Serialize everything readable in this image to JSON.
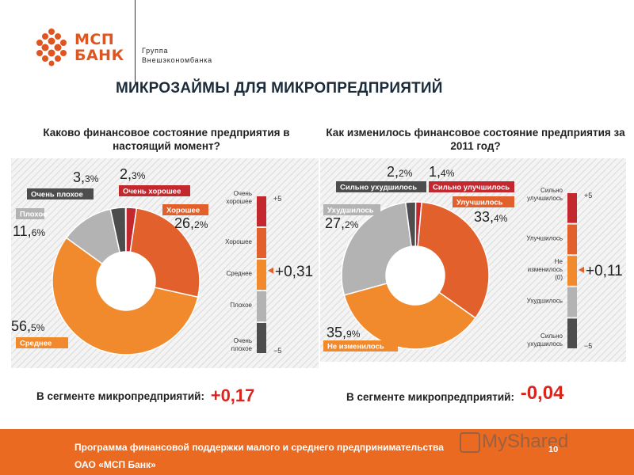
{
  "brand": {
    "logo_line1": "МСП",
    "logo_line2": "БАНК",
    "group_line1": "Группа",
    "group_line2": "Внешэкономбанка"
  },
  "title": "МИКРОЗАЙМЫ ДЛЯ МИКРОПРЕДПРИЯТИЙ",
  "footer": {
    "line1": "Программа финансовой поддержки малого и среднего предпринимательства",
    "line2": "ОАО «МСП Банк»",
    "page_number": "10",
    "watermark": "MyShared"
  },
  "chart_data": [
    {
      "type": "pie",
      "title": "Каково финансовое состояние предприятия в настоящий момент?",
      "slices": [
        {
          "label": "Очень хорошее",
          "value_int": "2,",
          "value_dec": "3%",
          "value": 2.3,
          "color": "#c2282e"
        },
        {
          "label": "Хорошее",
          "value_int": "26,",
          "value_dec": "2%",
          "value": 26.2,
          "color": "#e2602b"
        },
        {
          "label": "Среднее",
          "value_int": "56,",
          "value_dec": "5%",
          "value": 56.5,
          "color": "#f08a2c"
        },
        {
          "label": "Плохое",
          "value_int": "11,",
          "value_dec": "6%",
          "value": 11.6,
          "color": "#b3b3b3"
        },
        {
          "label": "Очень плохое",
          "value_int": "3,",
          "value_dec": "3%",
          "value": 3.3,
          "color": "#4d4d4d"
        }
      ],
      "scale": {
        "labels": [
          "Очень хорошее",
          "Хорошее",
          "Среднее",
          "Плохое",
          "Очень плохое"
        ],
        "top": "+5",
        "bottom": "−5",
        "index": "+0,31",
        "index_value": 0.31
      },
      "segment_text": "В сегменте микропредприятий:",
      "segment_value": "+0,17"
    },
    {
      "type": "pie",
      "title": "Как изменилось финансовое состояние предприятия за 2011 год?",
      "slices": [
        {
          "label": "Сильно улучшилось",
          "value_int": "1,",
          "value_dec": "4%",
          "value": 1.4,
          "color": "#c2282e"
        },
        {
          "label": "Улучшилось",
          "value_int": "33,",
          "value_dec": "4%",
          "value": 33.4,
          "color": "#e2602b"
        },
        {
          "label": "Не изменилось",
          "value_int": "35,",
          "value_dec": "9%",
          "value": 35.9,
          "color": "#f08a2c"
        },
        {
          "label": "Ухудшилось",
          "value_int": "27,",
          "value_dec": "2%",
          "value": 27.2,
          "color": "#b3b3b3"
        },
        {
          "label": "Сильно ухудшилось",
          "value_int": "2,",
          "value_dec": "2%",
          "value": 2.2,
          "color": "#4d4d4d"
        }
      ],
      "scale": {
        "labels": [
          "Сильно улучшилось",
          "Улучшилось",
          "Не изменилось (0)",
          "Ухудшилось",
          "Сильно ухудшилось"
        ],
        "top": "+5",
        "bottom": "−5",
        "index": "+0,11",
        "index_value": 0.11
      },
      "segment_text": "В сегменте микропредприятий:",
      "segment_value": "-0,04"
    }
  ]
}
